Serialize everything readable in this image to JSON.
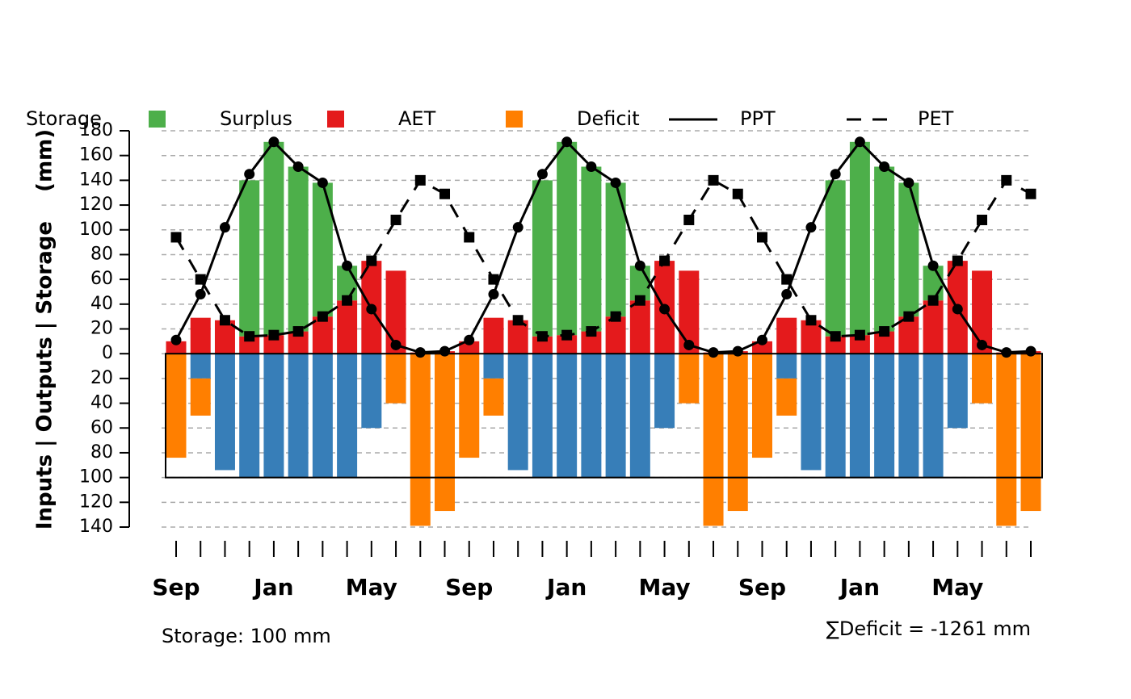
{
  "chart_data": {
    "type": "bar",
    "y_label": "Inputs | Outputs | Storage    (mm)",
    "annotations": [
      "Storage: 100 mm",
      "∑Deficit = -1261 mm"
    ],
    "capacity_line": -100,
    "categories": [
      "Sep",
      null,
      null,
      null,
      "Jan",
      null,
      null,
      null,
      "May",
      null,
      null,
      null,
      "Sep",
      null,
      null,
      null,
      "Jan",
      null,
      null,
      null,
      "May",
      null,
      null,
      null,
      "Sep",
      null,
      null,
      null,
      "Jan",
      null,
      null,
      null,
      "May",
      null,
      null,
      null
    ],
    "series": [
      {
        "name": "Storage",
        "type": "bar",
        "color": "#377eb8",
        "stack": "down",
        "values": [
          0,
          -20,
          -94,
          -100,
          -100,
          -100,
          -100,
          -100,
          -60,
          0,
          0,
          0,
          0,
          -20,
          -94,
          -100,
          -100,
          -100,
          -100,
          -100,
          -60,
          0,
          0,
          0,
          0,
          -20,
          -94,
          -100,
          -100,
          -100,
          -100,
          -100,
          -60,
          0,
          0,
          0
        ]
      },
      {
        "name": "Surplus",
        "type": "bar",
        "color": "#4daf4a",
        "stack": "up",
        "values": [
          0,
          0,
          0,
          126,
          156,
          133,
          108,
          28,
          0,
          0,
          0,
          0,
          0,
          0,
          0,
          126,
          156,
          133,
          108,
          28,
          0,
          0,
          0,
          0,
          0,
          0,
          0,
          126,
          156,
          133,
          108,
          28,
          0,
          0,
          0,
          0
        ]
      },
      {
        "name": "AET",
        "type": "bar",
        "color": "#e41a1c",
        "stack": "up",
        "values": [
          10,
          29,
          27,
          14,
          15,
          18,
          30,
          43,
          75,
          67,
          1,
          2,
          10,
          29,
          27,
          14,
          15,
          18,
          30,
          43,
          75,
          67,
          1,
          2,
          10,
          29,
          27,
          14,
          15,
          18,
          30,
          43,
          75,
          67,
          1,
          2
        ]
      },
      {
        "name": "Deficit",
        "type": "bar",
        "color": "#ff7f00",
        "stack": "down",
        "values": [
          -84,
          -30,
          0,
          0,
          0,
          0,
          0,
          0,
          0,
          -40,
          -139,
          -127,
          -84,
          -30,
          0,
          0,
          0,
          0,
          0,
          0,
          0,
          -40,
          -139,
          -127,
          -84,
          -30,
          0,
          0,
          0,
          0,
          0,
          0,
          0,
          -40,
          -139,
          -127
        ]
      },
      {
        "name": "PPT",
        "type": "line",
        "color": "#000000",
        "dash": false,
        "marker": "circle",
        "values": [
          11,
          48,
          102,
          145,
          171,
          151,
          138,
          71,
          36,
          7,
          1,
          2,
          11,
          48,
          102,
          145,
          171,
          151,
          138,
          71,
          36,
          7,
          1,
          2,
          11,
          48,
          102,
          145,
          171,
          151,
          138,
          71,
          36,
          7,
          1,
          2
        ]
      },
      {
        "name": "PET",
        "type": "line",
        "color": "#000000",
        "dash": true,
        "marker": "square",
        "values": [
          94,
          60,
          27,
          14,
          15,
          18,
          30,
          43,
          75,
          108,
          140,
          129,
          94,
          60,
          27,
          14,
          15,
          18,
          30,
          43,
          75,
          108,
          140,
          129,
          94,
          60,
          27,
          14,
          15,
          18,
          30,
          43,
          75,
          108,
          140,
          129
        ]
      }
    ],
    "ylim": [
      -140,
      180
    ],
    "yticks": [
      180,
      160,
      140,
      120,
      100,
      80,
      60,
      40,
      20,
      0,
      {
        "value": -20,
        "label": "20"
      },
      {
        "value": -40,
        "label": "40"
      },
      {
        "value": -60,
        "label": "60"
      },
      {
        "value": -80,
        "label": "80"
      },
      {
        "value": -100,
        "label": "100"
      },
      {
        "value": -120,
        "label": "120"
      },
      {
        "value": -140,
        "label": "140"
      }
    ],
    "grid": true,
    "legend_position": "top"
  }
}
